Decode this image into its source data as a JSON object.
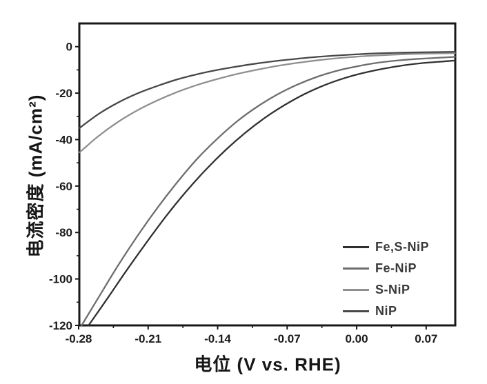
{
  "figure": {
    "background": "#ffffff",
    "axis_color": "#161616",
    "tick_label_color": "#1a1a1a"
  },
  "chart_data": {
    "type": "line",
    "title": "",
    "xlabel": "电位 (V vs. RHE)",
    "ylabel": "电流密度 (mA/cm²)",
    "xlim": [
      -0.2793,
      0.0993
    ],
    "ylim": [
      -120,
      10
    ],
    "grid": false,
    "legend_position": "lower-right",
    "x_ticks": {
      "values": [
        -0.28,
        -0.21,
        -0.14,
        -0.07,
        0.0,
        0.07
      ],
      "labels": [
        "-0.28",
        "-0.21",
        "-0.14",
        "-0.07",
        "0.00",
        "0.07"
      ]
    },
    "x_minor_ticks": [
      -0.245,
      -0.175,
      -0.105,
      -0.035,
      0.035
    ],
    "y_ticks": {
      "values": [
        0,
        -20,
        -40,
        -60,
        -80,
        -100,
        -120
      ],
      "labels": [
        "0",
        "-20",
        "-40",
        "-60",
        "-80",
        "-100",
        "-120"
      ]
    },
    "y_minor_ticks": [
      -10,
      -30,
      -50,
      -70,
      -90,
      -110
    ],
    "series": [
      {
        "name": "Fe,S-NiP",
        "color": "#2e2e2e",
        "points": [
          [
            -0.27,
            -120
          ],
          [
            -0.252,
            -109
          ],
          [
            -0.232,
            -96.5
          ],
          [
            -0.212,
            -84.5
          ],
          [
            -0.192,
            -73
          ],
          [
            -0.172,
            -62.5
          ],
          [
            -0.152,
            -53
          ],
          [
            -0.132,
            -44.5
          ],
          [
            -0.112,
            -37
          ],
          [
            -0.092,
            -30.5
          ],
          [
            -0.072,
            -25
          ],
          [
            -0.052,
            -20.3
          ],
          [
            -0.032,
            -16.5
          ],
          [
            -0.012,
            -13.5
          ],
          [
            0.008,
            -11.2
          ],
          [
            0.028,
            -9.4
          ],
          [
            0.048,
            -8
          ],
          [
            0.068,
            -7
          ],
          [
            0.099,
            -6
          ]
        ]
      },
      {
        "name": "Fe-NiP",
        "color": "#6d6d6d",
        "points": [
          [
            -0.277,
            -120
          ],
          [
            -0.26,
            -108
          ],
          [
            -0.24,
            -94
          ],
          [
            -0.22,
            -81
          ],
          [
            -0.2,
            -69
          ],
          [
            -0.18,
            -58
          ],
          [
            -0.16,
            -48
          ],
          [
            -0.14,
            -39.5
          ],
          [
            -0.12,
            -32
          ],
          [
            -0.1,
            -25.8
          ],
          [
            -0.08,
            -20.6
          ],
          [
            -0.06,
            -16.4
          ],
          [
            -0.04,
            -13
          ],
          [
            -0.02,
            -10.4
          ],
          [
            0.0,
            -8.5
          ],
          [
            0.02,
            -7
          ],
          [
            0.04,
            -6
          ],
          [
            0.06,
            -5.3
          ],
          [
            0.099,
            -4.4
          ]
        ]
      },
      {
        "name": "S-NiP",
        "color": "#8f8f8f",
        "points": [
          [
            -0.279,
            -45.5
          ],
          [
            -0.26,
            -38.5
          ],
          [
            -0.24,
            -32.3
          ],
          [
            -0.22,
            -27.2
          ],
          [
            -0.2,
            -23
          ],
          [
            -0.18,
            -19.4
          ],
          [
            -0.16,
            -16.4
          ],
          [
            -0.14,
            -13.9
          ],
          [
            -0.12,
            -11.7
          ],
          [
            -0.1,
            -9.9
          ],
          [
            -0.08,
            -8.3
          ],
          [
            -0.06,
            -7
          ],
          [
            -0.04,
            -5.9
          ],
          [
            -0.02,
            -5
          ],
          [
            0.0,
            -4.3
          ],
          [
            0.02,
            -3.8
          ],
          [
            0.045,
            -3.3
          ],
          [
            0.07,
            -3.0
          ],
          [
            0.099,
            -2.8
          ]
        ]
      },
      {
        "name": "NiP",
        "color": "#474747",
        "points": [
          [
            -0.279,
            -35
          ],
          [
            -0.26,
            -29
          ],
          [
            -0.24,
            -24
          ],
          [
            -0.22,
            -20
          ],
          [
            -0.2,
            -16.8
          ],
          [
            -0.18,
            -14
          ],
          [
            -0.16,
            -11.8
          ],
          [
            -0.14,
            -10
          ],
          [
            -0.12,
            -8.5
          ],
          [
            -0.1,
            -7.2
          ],
          [
            -0.08,
            -6.1
          ],
          [
            -0.06,
            -5.2
          ],
          [
            -0.04,
            -4.4
          ],
          [
            -0.02,
            -3.8
          ],
          [
            0.0,
            -3.3
          ],
          [
            0.02,
            -2.9
          ],
          [
            0.045,
            -2.6
          ],
          [
            0.07,
            -2.4
          ],
          [
            0.099,
            -2.2
          ]
        ]
      }
    ]
  }
}
